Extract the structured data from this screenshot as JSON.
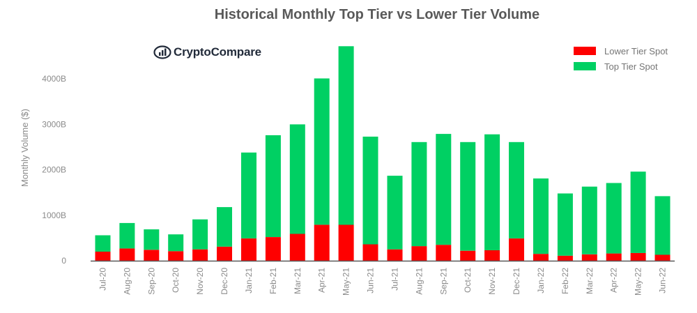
{
  "title": "Historical Monthly Top Tier vs Lower Tier Volume",
  "logo": {
    "text": "CryptoCompare",
    "icon": "cryptocompare-logo-icon"
  },
  "legend": [
    {
      "label": "Lower Tier Spot",
      "color": "#fe0000"
    },
    {
      "label": "Top Tier Spot",
      "color": "#00d063"
    }
  ],
  "chart_data": {
    "type": "bar",
    "stacked": true,
    "title": "Historical Monthly Top Tier vs Lower Tier Volume",
    "xlabel": "",
    "ylabel": "Monthly Volume ($)",
    "ylim": [
      0,
      4700
    ],
    "yticks": [
      0,
      1000,
      2000,
      3000,
      4000
    ],
    "ytick_labels": [
      "0",
      "1000B",
      "2000B",
      "3000B",
      "4000B"
    ],
    "grid": false,
    "legend_position": "top-right",
    "categories": [
      "Jul-20",
      "Aug-20",
      "Sep-20",
      "Oct-20",
      "Nov-20",
      "Dec-20",
      "Jan-21",
      "Feb-21",
      "Mar-21",
      "Apr-21",
      "May-21",
      "Jun-21",
      "Jul-21",
      "Aug-21",
      "Sep-21",
      "Oct-21",
      "Nov-21",
      "Dec-21",
      "Jan-22",
      "Feb-22",
      "Mar-22",
      "Apr-22",
      "May-22",
      "Jun-22"
    ],
    "series": [
      {
        "name": "Lower Tier Spot",
        "color": "#fe0000",
        "values": [
          200,
          270,
          240,
          210,
          250,
          310,
          490,
          520,
          590,
          790,
          790,
          360,
          250,
          320,
          350,
          220,
          230,
          490,
          150,
          110,
          140,
          160,
          170,
          130
        ]
      },
      {
        "name": "Top Tier Spot",
        "color": "#00d063",
        "values": [
          360,
          560,
          450,
          370,
          660,
          870,
          1890,
          2240,
          2410,
          3220,
          3930,
          2370,
          1620,
          2290,
          2440,
          2390,
          2550,
          2120,
          1660,
          1370,
          1490,
          1550,
          1790,
          1290
        ]
      }
    ]
  }
}
